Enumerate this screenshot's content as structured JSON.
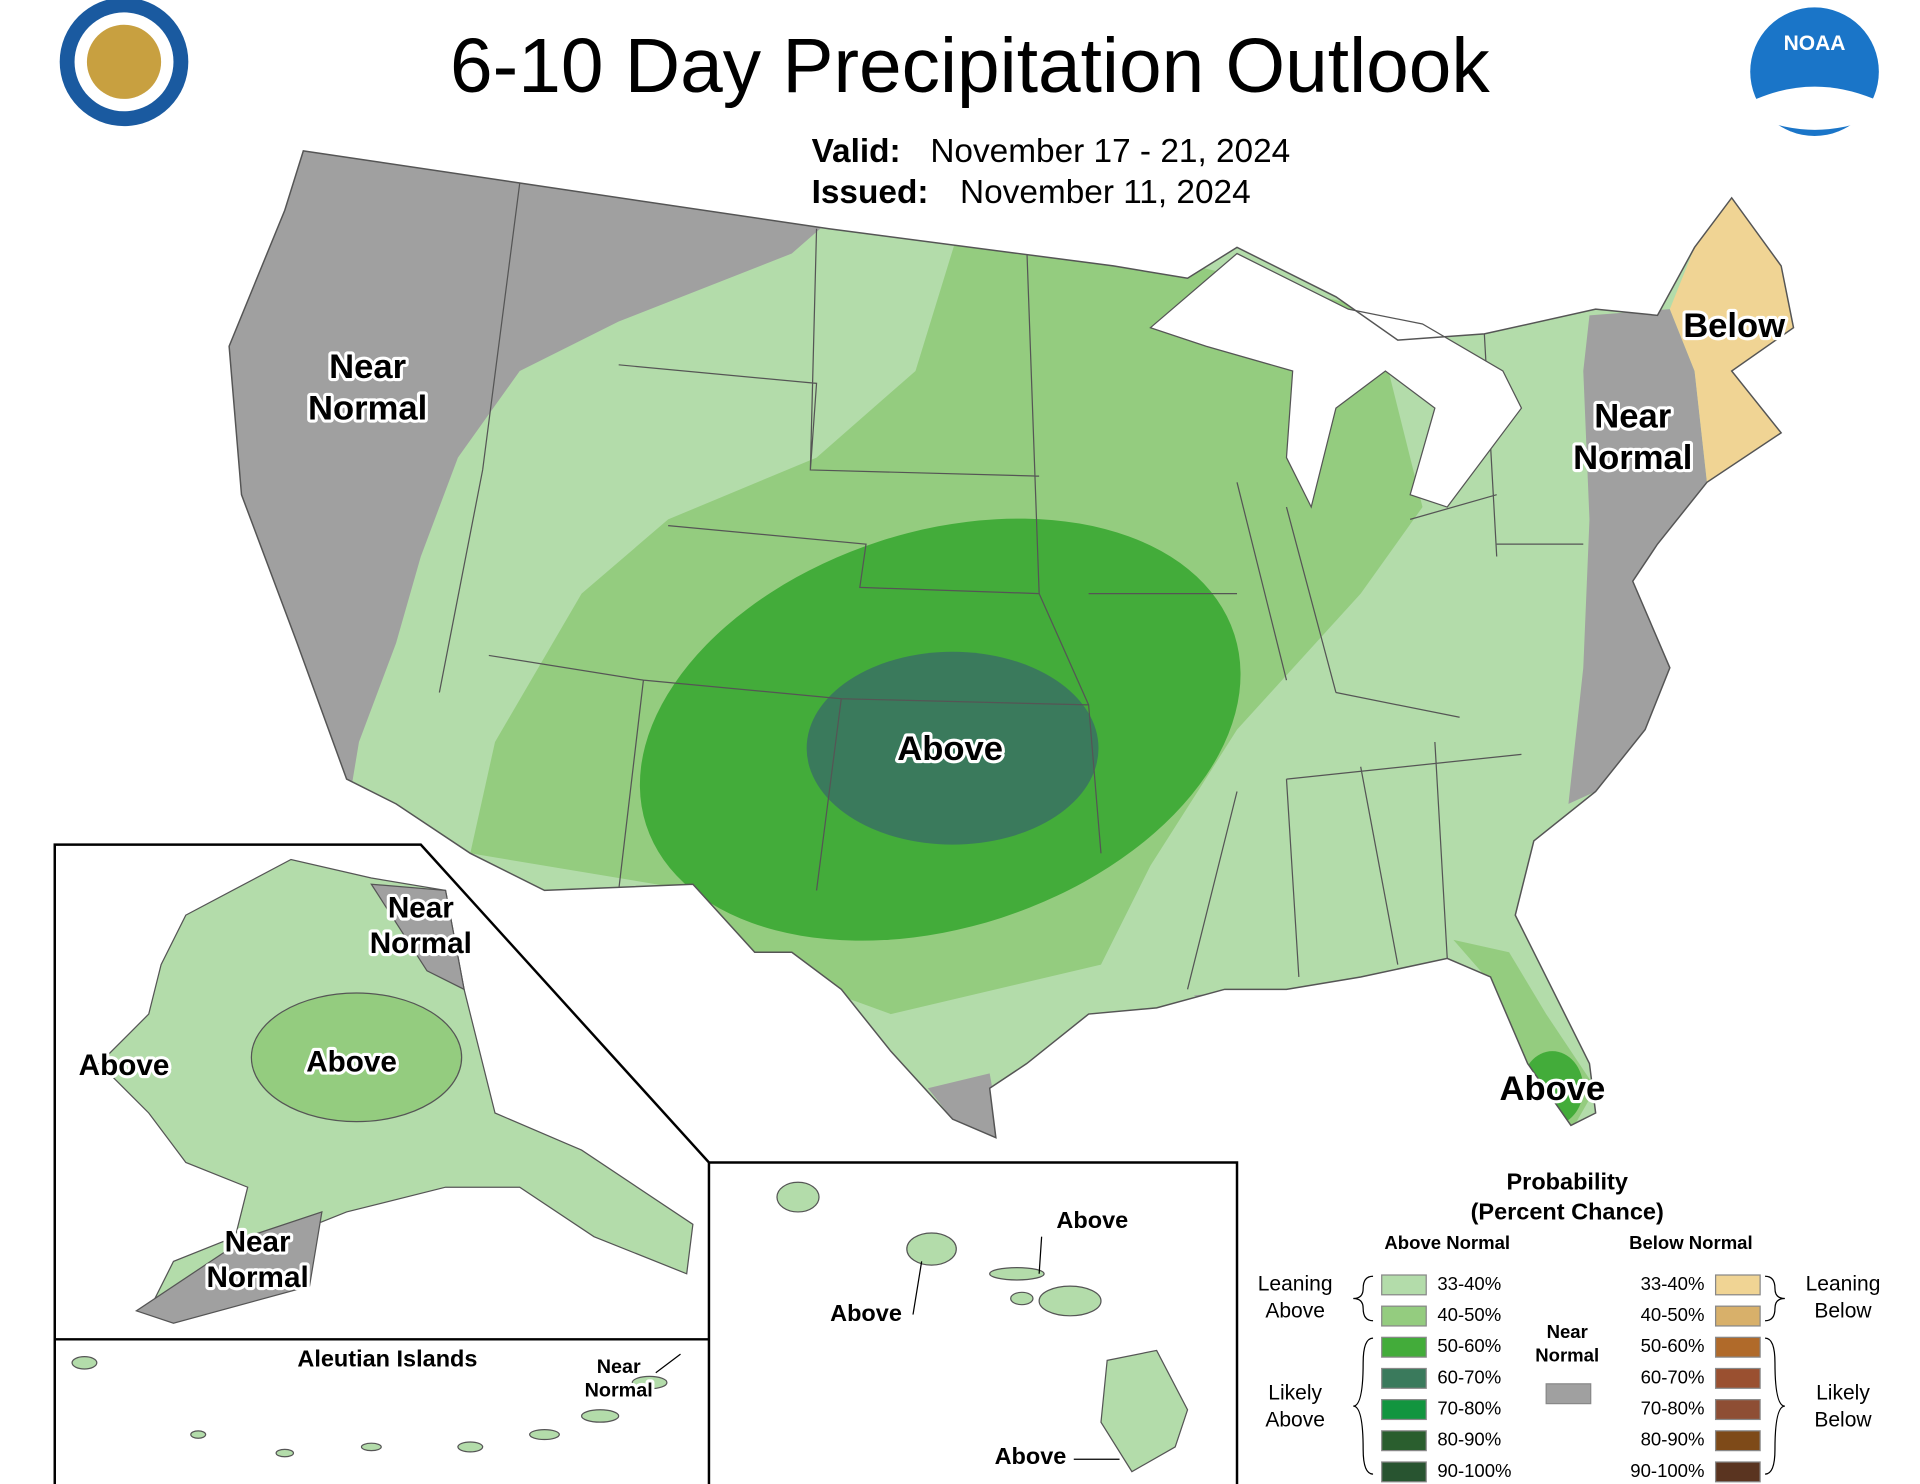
{
  "header": {
    "title": "6-10 Day Precipitation Outlook",
    "valid_label": "Valid:",
    "valid_date": "November 17 - 21, 2024",
    "issued_label": "Issued:",
    "issued_date": "November 11, 2024",
    "logo_text": "NOAA"
  },
  "map_labels": [
    {
      "lines": [
        "Near",
        "Normal"
      ]
    },
    {
      "lines": [
        "Near",
        "Normal"
      ]
    },
    {
      "lines": [
        "Below"
      ]
    },
    {
      "lines": [
        "Above"
      ]
    },
    {
      "lines": [
        "Above"
      ]
    },
    {
      "lines": [
        "Near",
        "Normal"
      ]
    },
    {
      "lines": [
        "Above"
      ]
    },
    {
      "lines": [
        "Above"
      ]
    },
    {
      "lines": [
        "Near",
        "Normal"
      ]
    },
    {
      "lines": [
        "Above"
      ]
    },
    {
      "lines": [
        "Above"
      ]
    },
    {
      "lines": [
        "Above"
      ]
    }
  ],
  "aleutian": {
    "title": "Aleutian Islands",
    "lines": [
      "Near",
      "Normal"
    ]
  },
  "legend": {
    "title_lines": [
      "Probability",
      "(Percent Chance)"
    ],
    "above_heading": "Above Normal",
    "below_heading": "Below Normal",
    "leaning_above": [
      "Leaning",
      "Above"
    ],
    "likely_above": [
      "Likely",
      "Above"
    ],
    "leaning_below": [
      "Leaning",
      "Below"
    ],
    "likely_below": [
      "Likely",
      "Below"
    ],
    "near_normal": [
      "Near",
      "Normal"
    ],
    "near_color": "#a0a0a0",
    "above": [
      {
        "label": "33-40%",
        "color": "#b3dcaa"
      },
      {
        "label": "40-50%",
        "color": "#94cc7f"
      },
      {
        "label": "50-60%",
        "color": "#43ac3a"
      },
      {
        "label": "60-70%",
        "color": "#3a7a5c"
      },
      {
        "label": "70-80%",
        "color": "#12953f"
      },
      {
        "label": "80-90%",
        "color": "#2a5e2e"
      },
      {
        "label": "90-100%",
        "color": "#285430"
      }
    ],
    "below": [
      {
        "label": "33-40%",
        "color": "#f0d494"
      },
      {
        "label": "40-50%",
        "color": "#d8b06a"
      },
      {
        "label": "50-60%",
        "color": "#b06a2a"
      },
      {
        "label": "60-70%",
        "color": "#9a5030"
      },
      {
        "label": "70-80%",
        "color": "#8e4e34"
      },
      {
        "label": "80-90%",
        "color": "#7e4a18"
      },
      {
        "label": "90-100%",
        "color": "#5a3420"
      }
    ]
  }
}
